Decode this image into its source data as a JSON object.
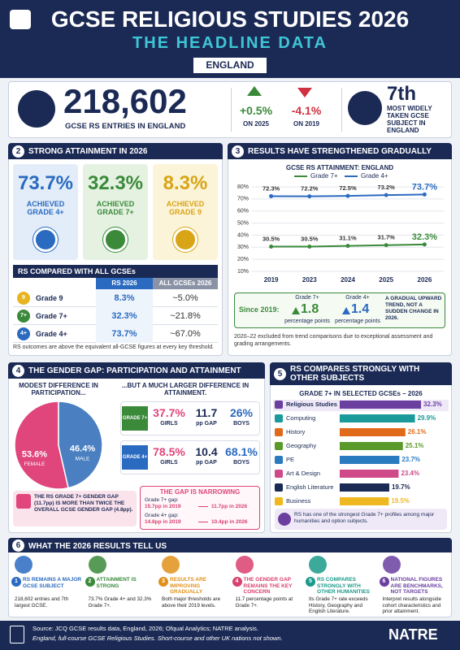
{
  "header": {
    "title": "GCSE RELIGIOUS STUDIES 2026",
    "subtitle": "THE HEADLINE DATA",
    "region": "ENGLAND"
  },
  "headline": {
    "entries": "218,602",
    "entries_label": "GCSE RS ENTRIES IN ENGLAND",
    "change_2025": "+0.5%",
    "change_2025_label": "ON 2025",
    "change_2019": "-4.1%",
    "change_2019_label": "ON 2019",
    "rank": "7th",
    "rank_label": "MOST WIDELY TAKEN GCSE SUBJECT IN ENGLAND"
  },
  "attainment": {
    "number": "2",
    "title": "STRONG ATTAINMENT IN 2026",
    "cards": [
      {
        "value": "73.7%",
        "label": "ACHIEVED GRADE 4+"
      },
      {
        "value": "32.3%",
        "label": "ACHIEVED GRADE 7+"
      },
      {
        "value": "8.3%",
        "label": "ACHIEVED GRADE 9"
      }
    ],
    "table": {
      "title": "RS COMPARED WITH ALL GCSEs",
      "headers": [
        "RS 2026",
        "ALL GCSEs 2026"
      ],
      "rows": [
        {
          "badge": "9",
          "grade": "Grade 9",
          "rs": "8.3%",
          "all": "~5.0%"
        },
        {
          "badge": "7+",
          "grade": "Grade 7+",
          "rs": "32.3%",
          "all": "~21.8%"
        },
        {
          "badge": "4+",
          "grade": "Grade 4+",
          "rs": "73.7%",
          "all": "~67.0%"
        }
      ]
    },
    "note": "RS outcomes are above the equivalent all-GCSE figures at every key threshold."
  },
  "trend": {
    "number": "3",
    "title": "RESULTS HAVE STRENGTHENED GRADUALLY",
    "since": {
      "label": "Since 2019:",
      "items": [
        {
          "grade": "Grade 7+",
          "value": "1.8",
          "unit": "percentage points"
        },
        {
          "grade": "Grade 4+",
          "value": "1.4",
          "unit": "percentage points"
        }
      ],
      "comment": "A GRADUAL UPWARD TREND, NOT A SUDDEN CHANGE IN 2026."
    },
    "note": "2020–22 excluded from trend comparisons due to exceptional assessment and grading arrangements."
  },
  "gender": {
    "number": "4",
    "title": "THE GENDER GAP: PARTICIPATION AND ATTAINMENT",
    "left_heading": "MODEST DIFFERENCE IN PARTICIPATION...",
    "right_heading": "...BUT A MUCH LARGER DIFFERENCE IN ATTAINMENT.",
    "rows": [
      {
        "grade": "GRADE 7+",
        "girls": "37.7%",
        "girls_label": "GIRLS",
        "gap": "11.7",
        "gap_label": "pp GAP",
        "boys": "26%",
        "boys_label": "BOYS"
      },
      {
        "grade": "GRADE 4+",
        "girls": "78.5%",
        "girls_label": "GIRLS",
        "gap": "10.4",
        "gap_label": "pp GAP",
        "boys": "68.1%",
        "boys_label": "BOYS"
      }
    ],
    "callout": "THE RS GRADE 7+ GENDER GAP (11.7pp) IS MORE THAN TWICE THE OVERALL GCSE GENDER GAP (4.8pp).",
    "narrowing": {
      "title": "THE GAP IS NARROWING",
      "items": [
        {
          "label": "Grade 7+ gap:",
          "from": "15.7pp in 2019",
          "to": "11.7pp in 2026"
        },
        {
          "label": "Grade 4+ gap:",
          "from": "14.8pp in 2019",
          "to": "10.4pp in 2026"
        }
      ]
    }
  },
  "compare": {
    "number": "5",
    "title": "RS COMPARES STRONGLY WITH OTHER SUBJECTS",
    "note": "RS has one of the strongest Grade 7+ profiles among major humanities and option subjects."
  },
  "summary": {
    "number": "6",
    "title": "WHAT THE 2026 RESULTS TELL US",
    "items": [
      {
        "number": "1",
        "title": "RS REMAINS A MAJOR GCSE SUBJECT",
        "text": "218,602 entries and 7th largest GCSE.",
        "color": "#2a6ac0"
      },
      {
        "number": "2",
        "title": "ATTAINMENT IS STRONG",
        "text": "73.7% Grade 4+ and 32.3% Grade 7+.",
        "color": "#3a8a3a"
      },
      {
        "number": "3",
        "title": "RESULTS ARE IMPROVING GRADUALLY",
        "text": "Both major thresholds are above their 2019 levels.",
        "color": "#e0901a"
      },
      {
        "number": "4",
        "title": "THE GENDER GAP REMAINS THE KEY CONCERN",
        "text": "11.7 percentage points at Grade 7+.",
        "color": "#d9406e"
      },
      {
        "number": "5",
        "title": "RS COMPARES STRONGLY WITH OTHER HUMANITIES",
        "text": "Its Grade 7+ rate exceeds History, Geography and English Literature.",
        "color": "#1a9a8a"
      },
      {
        "number": "6",
        "title": "NATIONAL FIGURES ARE BENCHMARKS, NOT TARGETS",
        "text": "Interpret results alongside cohort characteristics and prior attainment.",
        "color": "#6a3fa0"
      }
    ]
  },
  "footer": {
    "source": "Source: JCQ GCSE results data, England, 2026; Ofqual Analytics; NATRE analysis.",
    "scope": "England, full-course GCSE Religious Studies. Short-course and other UK nations not shown.",
    "logo": "NATRE"
  },
  "chart_data": [
    {
      "type": "line",
      "title": "GCSE RS ATTAINMENT: ENGLAND",
      "categories": [
        "2019",
        "2023",
        "2024",
        "2025",
        "2026"
      ],
      "series": [
        {
          "name": "Grade 7+",
          "color": "#3a8a3a",
          "values": [
            30.5,
            30.5,
            31.1,
            31.7,
            32.3
          ],
          "value_labels": [
            "30.5%",
            "30.5%",
            "31.1%",
            "31.7%",
            "32.3%"
          ]
        },
        {
          "name": "Grade 4+",
          "color": "#2a6ac0",
          "values": [
            72.3,
            72.2,
            72.5,
            73.2,
            73.7
          ],
          "value_labels": [
            "72.3%",
            "72.2%",
            "72.5%",
            "73.2%",
            "73.7%"
          ]
        }
      ],
      "ylim": [
        10,
        80
      ],
      "yticks": [
        {
          "value": 10,
          "label": "10%"
        },
        {
          "value": 20,
          "label": "20%"
        },
        {
          "value": 30,
          "label": "30%"
        },
        {
          "value": 40,
          "label": "40%"
        },
        {
          "value": 50,
          "label": "50%"
        },
        {
          "value": 60,
          "label": "60%"
        },
        {
          "value": 70,
          "label": "70%"
        },
        {
          "value": 80,
          "label": "80%"
        }
      ],
      "grid": true
    },
    {
      "type": "pie",
      "categories": [
        "FEMALE",
        "MALE"
      ],
      "values": [
        53.6,
        46.4
      ],
      "value_labels": [
        "53.6%",
        "46.4%"
      ],
      "colors": [
        "#e0457b",
        "#4a7fc1"
      ]
    },
    {
      "type": "bar",
      "orientation": "horizontal",
      "subtitle": "GRADE 7+ IN SELECTED GCSEs – 2026",
      "categories": [
        "Religious Studies",
        "Computing",
        "History",
        "Geography",
        "PE",
        "Art & Design",
        "English Literature",
        "Business"
      ],
      "values": [
        32.3,
        29.9,
        26.1,
        25.1,
        23.7,
        23.4,
        19.7,
        19.5
      ],
      "value_labels": [
        "32.3%",
        "29.9%",
        "26.1%",
        "25.1%",
        "23.7%",
        "23.4%",
        "19.7%",
        "19.5%"
      ],
      "colors": [
        "#6a3fa0",
        "#1a9a9a",
        "#e06a1a",
        "#5a9a2a",
        "#2a7ac0",
        "#d04a8a",
        "#1b2a55",
        "#f0b820"
      ]
    }
  ]
}
